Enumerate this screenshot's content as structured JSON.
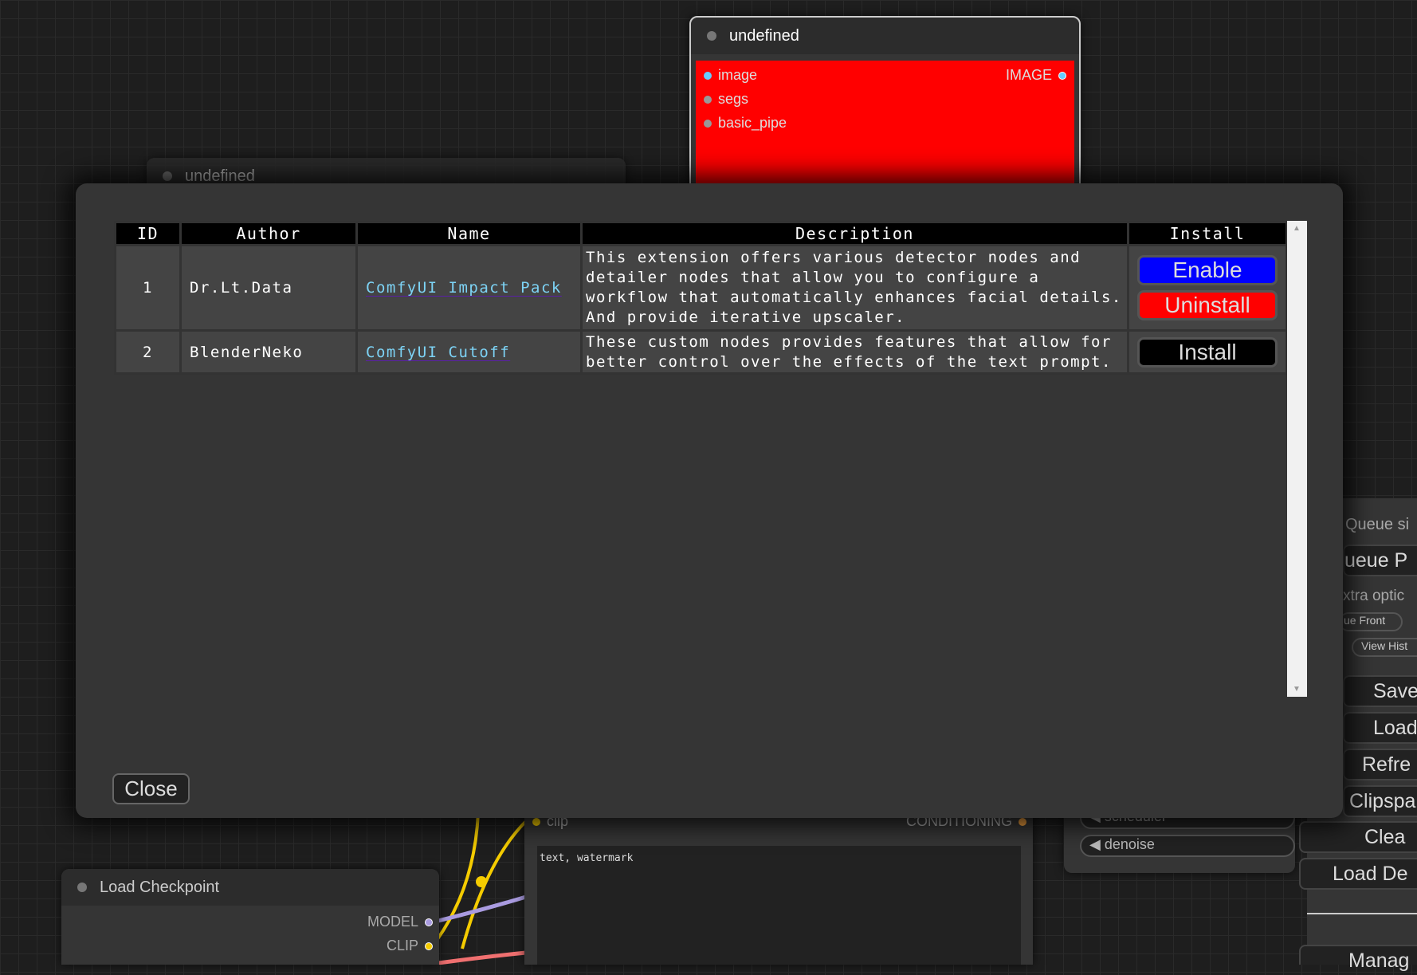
{
  "canvas": {
    "top_node": {
      "title": "undefined",
      "inputs": [
        "image",
        "segs",
        "basic_pipe"
      ],
      "output": "IMAGE",
      "color": "#ff0000"
    },
    "left_node": {
      "title": "undefined"
    },
    "checkpoint_node": {
      "title": "Load Checkpoint",
      "outputs": [
        "MODEL",
        "CLIP"
      ]
    },
    "text_node": {
      "input": "clip",
      "output": "CONDITIONING",
      "text": "text, watermark"
    },
    "sampler_node": {
      "widgets": [
        "scheduler",
        "denoise"
      ]
    }
  },
  "dialog": {
    "columns": [
      "ID",
      "Author",
      "Name",
      "Description",
      "Install"
    ],
    "rows": [
      {
        "id": "1",
        "author": "Dr.Lt.Data",
        "name": "ComfyUI Impact Pack",
        "description": "This extension offers various detector nodes and detailer nodes that allow you to configure a workflow that automatically enhances facial details. And provide iterative upscaler.",
        "buttons": [
          {
            "label": "Enable",
            "color": "#0000ff"
          },
          {
            "label": "Uninstall",
            "color": "#ff0000"
          }
        ]
      },
      {
        "id": "2",
        "author": "BlenderNeko",
        "name": "ComfyUI Cutoff",
        "description": "These custom nodes provides features that allow for better control over the effects of the text prompt.",
        "buttons": [
          {
            "label": "Install",
            "color": "#000000"
          }
        ]
      }
    ],
    "close_label": "Close"
  },
  "menu": {
    "queue_size": "Queue si",
    "queue_prompt": "ueue P",
    "extra_options": "xtra optic",
    "queue_front": "ue Front",
    "view_history": "View Hist",
    "save": "Save",
    "load": "Load",
    "refresh": "Refre",
    "clipspace": "Clipspa",
    "clear": "Clea",
    "load_default": "Load De",
    "manager": "Manag"
  }
}
